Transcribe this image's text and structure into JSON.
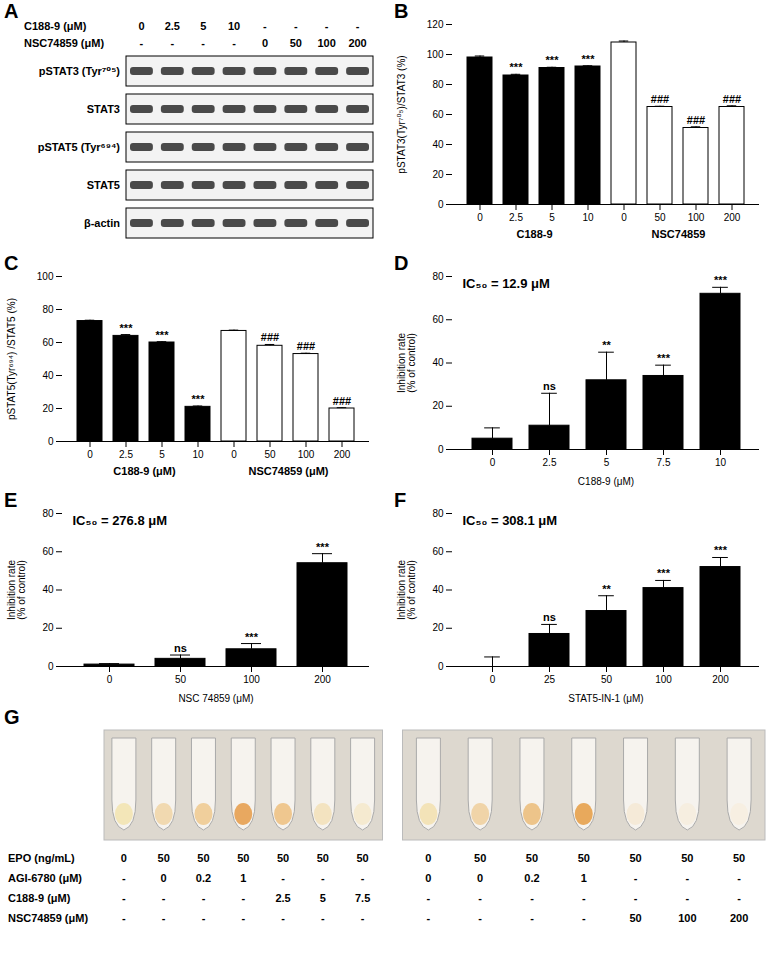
{
  "chart_data": [
    {
      "panel": "B",
      "type": "bar",
      "categories": [
        "0",
        "2.5",
        "5",
        "10",
        "0",
        "50",
        "100",
        "200"
      ],
      "ylabel": "pSTAT3(Tyr⁷⁰⁵)/STAT3 (%)",
      "ylim": [
        0,
        120
      ],
      "yticks": [
        0,
        20,
        40,
        60,
        80,
        100,
        120
      ],
      "series": [
        {
          "name": "C188-9",
          "color": "#000000",
          "values": [
            98,
            86,
            91,
            92,
            null,
            null,
            null,
            null
          ],
          "errors": [
            1,
            0.8,
            0.5,
            0.5,
            null,
            null,
            null,
            null
          ],
          "significance": [
            null,
            "***",
            "***",
            "***",
            null,
            null,
            null,
            null
          ]
        },
        {
          "name": "NSC74859",
          "color": "#ffffff",
          "values": [
            null,
            null,
            null,
            null,
            108,
            65,
            51,
            65
          ],
          "errors": [
            null,
            null,
            null,
            null,
            1,
            0.5,
            0.8,
            0.8
          ],
          "significance": [
            null,
            null,
            null,
            null,
            null,
            "###",
            "###",
            "###"
          ]
        }
      ]
    },
    {
      "panel": "C",
      "type": "bar",
      "categories": [
        "0",
        "2.5",
        "5",
        "10",
        "0",
        "50",
        "100",
        "200"
      ],
      "ylabel": "pSTAT5(Tyr⁶⁹⁴) /STAT5 (%)",
      "ylim": [
        0,
        100
      ],
      "yticks": [
        0,
        20,
        40,
        60,
        80,
        100
      ],
      "series": [
        {
          "name": "C188-9 (μM)",
          "color": "#000000",
          "values": [
            73,
            64,
            60,
            21,
            null,
            null,
            null,
            null
          ],
          "errors": [
            0.5,
            0.8,
            0.5,
            0.5,
            null,
            null,
            null,
            null
          ],
          "significance": [
            null,
            "***",
            "***",
            "***",
            null,
            null,
            null,
            null
          ]
        },
        {
          "name": "NSC74859 (μM)",
          "color": "#ffffff",
          "values": [
            null,
            null,
            null,
            null,
            67,
            58,
            53,
            20
          ],
          "errors": [
            null,
            null,
            null,
            null,
            0.5,
            0.8,
            0.5,
            0.5
          ],
          "significance": [
            null,
            null,
            null,
            null,
            null,
            "###",
            "###",
            "###"
          ]
        }
      ]
    },
    {
      "panel": "D",
      "type": "bar",
      "categories": [
        "0",
        "2.5",
        "5",
        "7.5",
        "10"
      ],
      "values": [
        5,
        11,
        32,
        34,
        72
      ],
      "errors": [
        5,
        15,
        13,
        5,
        3
      ],
      "significance": [
        null,
        "ns",
        "**",
        "***",
        "***"
      ],
      "color": "#000000",
      "annotation": "IC₅₀ = 12.9 μM",
      "xlabel": "C188-9 (μM)",
      "ylabel": "Inhibition rate (% of control)",
      "ylim": [
        0,
        80
      ],
      "yticks": [
        0,
        20,
        40,
        60,
        80
      ]
    },
    {
      "panel": "E",
      "type": "bar",
      "categories": [
        "0",
        "50",
        "100",
        "200"
      ],
      "values": [
        1,
        4,
        9,
        54
      ],
      "errors": [
        0.5,
        2,
        3,
        5
      ],
      "significance": [
        null,
        "ns",
        "***",
        "***"
      ],
      "color": "#000000",
      "annotation": "IC₅₀ = 276.8 μM",
      "xlabel": "NSC 74859 (μM)",
      "ylabel": "Inhibition rate (% of control)",
      "ylim": [
        0,
        80
      ],
      "yticks": [
        0,
        20,
        40,
        60,
        80
      ]
    },
    {
      "panel": "F",
      "type": "bar",
      "categories": [
        "0",
        "25",
        "50",
        "100",
        "200"
      ],
      "values": [
        0,
        17,
        29,
        41,
        52
      ],
      "errors": [
        5,
        5,
        8,
        4,
        5
      ],
      "significance": [
        null,
        "ns",
        "**",
        "***",
        "***"
      ],
      "color": "#000000",
      "annotation": "IC₅₀ = 308.1 μM",
      "xlabel": "STAT5-IN-1 (μM)",
      "ylabel": "Inhibition rate (% of control)",
      "ylim": [
        0,
        80
      ],
      "yticks": [
        0,
        20,
        40,
        60,
        80
      ]
    }
  ],
  "blot": {
    "panel": "A",
    "treatments": [
      {
        "label": "C188-9 (μM)",
        "lanes": [
          "0",
          "2.5",
          "5",
          "10",
          "-",
          "-",
          "-",
          "-"
        ]
      },
      {
        "label": "NSC74859 (μM)",
        "lanes": [
          "-",
          "-",
          "-",
          "-",
          "0",
          "50",
          "100",
          "200"
        ]
      }
    ],
    "bands": [
      "pSTAT3 (Tyr⁷⁰⁵)",
      "STAT3",
      "pSTAT5 (Tyr⁶⁹⁴)",
      "STAT5",
      "β-actin"
    ]
  },
  "tubes": {
    "panel": "G",
    "row_labels": [
      "EPO (ng/mL)",
      "AGI-6780 (μM)",
      "C188-9 (μM)",
      "NSC74859 (μM)"
    ],
    "photos": [
      {
        "colors": [
          "#f3e6b8",
          "#f1d9b0",
          "#f0cf9c",
          "#e8a860",
          "#efc78f",
          "#f3e3c0",
          "#f5ead0"
        ],
        "rows": [
          [
            "0",
            "50",
            "50",
            "50",
            "50",
            "50",
            "50"
          ],
          [
            "-",
            "0",
            "0.2",
            "1",
            "-",
            "-",
            "-"
          ],
          [
            "-",
            "-",
            "-",
            "-",
            "2.5",
            "5",
            "7.5"
          ],
          [
            "-",
            "-",
            "-",
            "-",
            "-",
            "-",
            "-"
          ]
        ]
      },
      {
        "colors": [
          "#f3e3b8",
          "#f0d4a8",
          "#edc48a",
          "#e8a95c",
          "#f5ead8",
          "#f6eee0",
          "#f7efe2"
        ],
        "rows": [
          [
            "0",
            "50",
            "50",
            "50",
            "50",
            "50",
            "50"
          ],
          [
            "0",
            "0",
            "0.2",
            "1",
            "-",
            "-",
            "-"
          ],
          [
            "-",
            "-",
            "-",
            "-",
            "-",
            "-",
            "-"
          ],
          [
            "-",
            "-",
            "-",
            "-",
            "50",
            "100",
            "200"
          ]
        ]
      }
    ]
  }
}
